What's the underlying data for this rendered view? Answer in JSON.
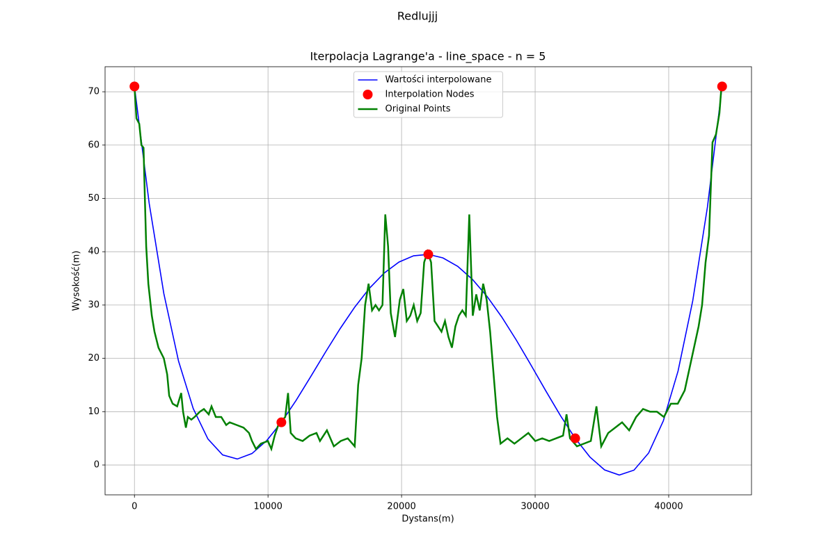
{
  "chart_data": {
    "type": "line",
    "suptitle": "Redlujjj",
    "title": "Iterpolacja Lagrange'a - line_space - n = 5",
    "xlabel": "Dystans(m)",
    "ylabel": "Wysokość(m)",
    "xlim": [
      -2200,
      46200
    ],
    "ylim": [
      -5.6,
      74.7
    ],
    "xticks": [
      0,
      10000,
      20000,
      30000,
      40000
    ],
    "yticks": [
      0,
      10,
      20,
      30,
      40,
      50,
      60,
      70
    ],
    "grid": true,
    "legend": "upper center",
    "series": [
      {
        "name": "Wartości interpolowane",
        "type": "line",
        "color": "#0000ff",
        "x": [
          0,
          1100,
          2200,
          3300,
          4400,
          5500,
          6600,
          7700,
          8800,
          9900,
          11000,
          12100,
          13200,
          14300,
          15400,
          16500,
          17600,
          18700,
          19800,
          20900,
          22000,
          23100,
          24200,
          25300,
          26400,
          27500,
          28600,
          29700,
          30800,
          31900,
          33000,
          34100,
          35200,
          36300,
          37400,
          38500,
          39600,
          40700,
          41800,
          42900,
          44000
        ],
        "values": [
          71,
          49.116,
          32.149,
          19.494,
          10.585,
          4.883,
          1.885,
          1.12,
          2.149,
          4.566,
          8,
          12.109,
          16.585,
          21.153,
          25.573,
          29.633,
          33.157,
          36.0,
          38.053,
          39.235,
          39.5,
          38.836,
          37.261,
          34.828,
          31.621,
          27.758,
          23.389,
          18.697,
          13.897,
          9.238,
          5,
          1.498,
          -0.923,
          -1.883,
          -0.971,
          2.258,
          8.281,
          17.608,
          30.781,
          48.376,
          71
        ]
      },
      {
        "name": "Interpolation Nodes",
        "type": "scatter",
        "color": "#ff0000",
        "x": [
          0,
          11000,
          22000,
          33000,
          44000
        ],
        "values": [
          71,
          8,
          39.5,
          5,
          71
        ]
      },
      {
        "name": "Original Points",
        "type": "line",
        "color": "#008000",
        "x": [
          0,
          150,
          360,
          520,
          680,
          780,
          880,
          1040,
          1300,
          1500,
          1800,
          2200,
          2450,
          2600,
          2860,
          3200,
          3500,
          3640,
          3850,
          4000,
          4260,
          4500,
          4900,
          5200,
          5560,
          5770,
          6090,
          6500,
          6870,
          7130,
          7650,
          8170,
          8580,
          8800,
          9100,
          9470,
          9990,
          10250,
          10500,
          10770,
          11290,
          11500,
          11700,
          12070,
          12590,
          13110,
          13630,
          13890,
          14410,
          14930,
          15450,
          15970,
          16490,
          16750,
          17010,
          17270,
          17530,
          17790,
          18050,
          18310,
          18570,
          18780,
          18990,
          19190,
          19510,
          19870,
          20130,
          20390,
          20650,
          20910,
          21170,
          21430,
          21690,
          21950,
          22210,
          22470,
          22730,
          22990,
          23250,
          23510,
          23770,
          24030,
          24290,
          24550,
          24810,
          25070,
          25330,
          25590,
          25850,
          26110,
          26370,
          26630,
          26890,
          27150,
          27410,
          27930,
          28450,
          28970,
          29490,
          30010,
          30530,
          31050,
          31570,
          32090,
          32350,
          32610,
          33130,
          33650,
          34170,
          34590,
          34950,
          35470,
          35990,
          36510,
          37040,
          37560,
          38080,
          38600,
          39120,
          39640,
          40160,
          40680,
          41200,
          41720,
          41980,
          42240,
          42500,
          42760,
          43020,
          43280,
          43540,
          43800,
          43950
        ],
        "values": [
          71,
          65,
          64,
          60,
          59.5,
          50,
          41,
          34,
          28,
          25,
          22,
          20,
          17,
          13,
          11.5,
          11,
          13.5,
          10,
          7,
          9,
          8.5,
          9,
          10,
          10.5,
          9.5,
          11,
          9,
          9,
          7.5,
          8,
          7.5,
          7,
          6,
          4.5,
          3,
          4,
          4.5,
          3,
          5.5,
          7.5,
          9,
          13.5,
          6,
          5,
          4.5,
          5.5,
          6,
          4.5,
          6.5,
          3.5,
          4.5,
          5,
          3.5,
          15,
          20,
          30,
          34,
          29,
          30,
          29,
          30,
          47,
          41,
          28.5,
          24,
          31,
          33,
          27,
          28,
          30,
          27,
          28.5,
          38,
          40,
          38,
          27,
          26,
          25,
          27,
          24,
          22,
          26,
          28,
          29,
          28,
          47,
          28,
          32,
          29,
          34,
          31,
          25,
          17,
          9,
          4,
          5,
          4,
          5,
          6,
          4.5,
          5,
          4.5,
          5,
          5.5,
          9.5,
          5,
          3.5,
          4,
          4.5,
          11,
          3.5,
          6,
          7,
          8,
          6.5,
          9,
          10.5,
          10,
          10,
          9,
          11.5,
          11.5,
          14,
          20,
          23,
          26,
          30,
          38,
          43,
          60.5,
          62,
          66,
          71
        ]
      }
    ]
  }
}
